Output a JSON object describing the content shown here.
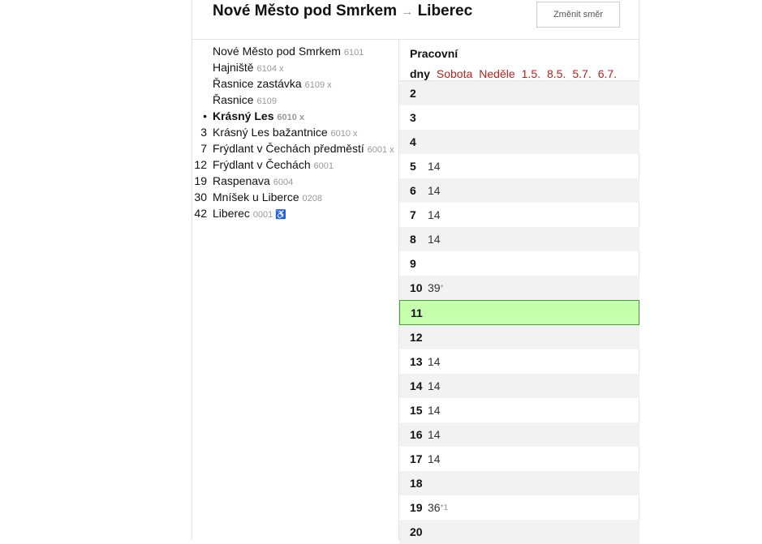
{
  "header": {
    "from": "Nové Město pod Smrkem",
    "arrow": "→",
    "to": "Liberec",
    "change_direction": "Změnit směr"
  },
  "stops": [
    {
      "num": "",
      "name": "Nové Město pod Smrkem",
      "code": "6101"
    },
    {
      "num": "",
      "name": "Hajniště",
      "code": "6104 x"
    },
    {
      "num": "",
      "name": "Řasnice zastávka",
      "code": "6109 x"
    },
    {
      "num": "",
      "name": "Řasnice",
      "code": "6109"
    },
    {
      "num": "•",
      "name": "Krásný Les",
      "code": "6010 x",
      "current": true
    },
    {
      "num": "3",
      "name": "Krásný Les bažantnice",
      "code": "6010 x"
    },
    {
      "num": "7",
      "name": "Frýdlant v Čechách předměstí",
      "code": "6001 x"
    },
    {
      "num": "12",
      "name": "Frýdlant v Čechách",
      "code": "6001"
    },
    {
      "num": "19",
      "name": "Raspenava",
      "code": "6004"
    },
    {
      "num": "30",
      "name": "Mníšek u Liberce",
      "code": "0208"
    },
    {
      "num": "42",
      "name": "Liberec",
      "code": "0001 ♿"
    }
  ],
  "day_tabs": [
    "Pracovní dny",
    "Sobota",
    "Neděle",
    "1.5.",
    "8.5.",
    "5.7.",
    "6.7."
  ],
  "active_day": "Pracovní dny",
  "highlight_color": "#c6ffad",
  "timetable": [
    {
      "hour": "2",
      "min": "",
      "note": ""
    },
    {
      "hour": "3",
      "min": "",
      "note": ""
    },
    {
      "hour": "4",
      "min": "",
      "note": ""
    },
    {
      "hour": "5",
      "min": "14",
      "note": ""
    },
    {
      "hour": "6",
      "min": "14",
      "note": ""
    },
    {
      "hour": "7",
      "min": "14",
      "note": ""
    },
    {
      "hour": "8",
      "min": "14",
      "note": ""
    },
    {
      "hour": "9",
      "min": "",
      "note": ""
    },
    {
      "hour": "10",
      "min": "39",
      "note": "*"
    },
    {
      "hour": "11",
      "min": "",
      "note": "",
      "current": true
    },
    {
      "hour": "12",
      "min": "",
      "note": ""
    },
    {
      "hour": "13",
      "min": "14",
      "note": ""
    },
    {
      "hour": "14",
      "min": "14",
      "note": ""
    },
    {
      "hour": "15",
      "min": "14",
      "note": ""
    },
    {
      "hour": "16",
      "min": "14",
      "note": ""
    },
    {
      "hour": "17",
      "min": "14",
      "note": ""
    },
    {
      "hour": "18",
      "min": "",
      "note": ""
    },
    {
      "hour": "19",
      "min": "36",
      "note": "*1"
    },
    {
      "hour": "20",
      "min": "",
      "note": ""
    }
  ]
}
